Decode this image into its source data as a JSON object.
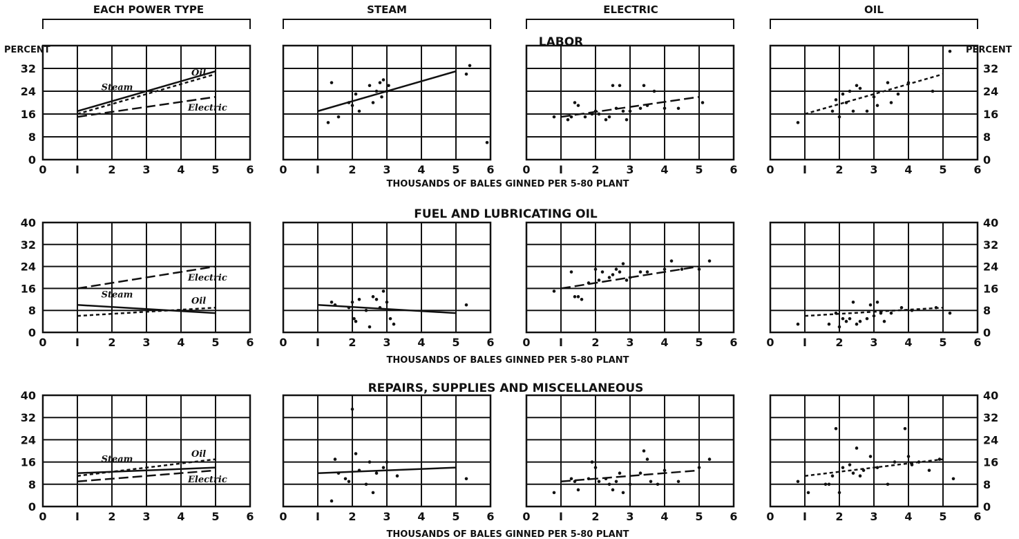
{
  "headers": [
    "EACH POWER TYPE",
    "STEAM",
    "ELECTRIC",
    "OIL"
  ],
  "sections": [
    "LABOR",
    "FUEL AND LUBRICATING OIL",
    "REPAIRS, SUPPLIES AND MISCELLANEOUS"
  ],
  "xlabel": "THOUSANDS OF BALES GINNED PER 5-80 PLANT",
  "x_ticks": [
    "0",
    "I",
    "2",
    "3",
    "4",
    "5",
    "6"
  ],
  "percent_label": "PERCENT",
  "series_labels": {
    "steam": "Steam",
    "electric": "Electric",
    "oil": "Oil"
  },
  "chart_data": [
    {
      "type": "scatter",
      "section": "LABOR",
      "xlim": [
        0,
        6
      ],
      "ylim": [
        0,
        40
      ],
      "y_ticks": [
        0,
        8,
        16,
        24,
        32
      ],
      "grid": true,
      "trends": {
        "steam": [
          [
            1,
            17
          ],
          [
            5,
            31
          ]
        ],
        "electric": [
          [
            1,
            15
          ],
          [
            5,
            22
          ]
        ],
        "oil": [
          [
            1,
            16
          ],
          [
            5,
            30
          ]
        ]
      },
      "points": {
        "steam": [
          [
            1.3,
            13
          ],
          [
            1.4,
            27
          ],
          [
            1.6,
            15
          ],
          [
            1.9,
            20
          ],
          [
            2.0,
            19
          ],
          [
            2.1,
            23
          ],
          [
            2.2,
            17
          ],
          [
            2.5,
            26
          ],
          [
            2.6,
            20
          ],
          [
            2.7,
            24
          ],
          [
            2.8,
            27
          ],
          [
            2.85,
            22
          ],
          [
            2.9,
            28
          ],
          [
            3.0,
            24
          ],
          [
            3.05,
            26
          ],
          [
            5.3,
            30
          ],
          [
            5.4,
            33
          ],
          [
            5.9,
            6
          ]
        ],
        "electric": [
          [
            0.8,
            15
          ],
          [
            1.2,
            14
          ],
          [
            1.3,
            15
          ],
          [
            1.4,
            20
          ],
          [
            1.5,
            19
          ],
          [
            1.7,
            15
          ],
          [
            1.9,
            16
          ],
          [
            2.0,
            17
          ],
          [
            2.1,
            16
          ],
          [
            2.3,
            14
          ],
          [
            2.4,
            15
          ],
          [
            2.5,
            26
          ],
          [
            2.6,
            18
          ],
          [
            2.7,
            26
          ],
          [
            2.8,
            17
          ],
          [
            2.9,
            14
          ],
          [
            3.0,
            17
          ],
          [
            3.3,
            18
          ],
          [
            3.4,
            26
          ],
          [
            3.5,
            19
          ],
          [
            3.7,
            24
          ],
          [
            4.0,
            18
          ],
          [
            4.4,
            18
          ],
          [
            5.1,
            20
          ]
        ],
        "oil": [
          [
            0.8,
            13
          ],
          [
            1.8,
            17
          ],
          [
            1.9,
            21
          ],
          [
            2.0,
            15
          ],
          [
            2.1,
            23
          ],
          [
            2.2,
            20
          ],
          [
            2.3,
            24
          ],
          [
            2.4,
            17
          ],
          [
            2.5,
            26
          ],
          [
            2.6,
            25
          ],
          [
            2.8,
            17
          ],
          [
            3.0,
            22
          ],
          [
            3.1,
            19
          ],
          [
            3.4,
            27
          ],
          [
            3.5,
            20
          ],
          [
            3.7,
            23
          ],
          [
            4.0,
            27
          ],
          [
            4.7,
            24
          ],
          [
            5.2,
            38
          ]
        ]
      }
    },
    {
      "type": "scatter",
      "section": "FUEL AND LUBRICATING OIL",
      "xlim": [
        0,
        6
      ],
      "ylim": [
        0,
        40
      ],
      "y_ticks": [
        0,
        8,
        16,
        24,
        32,
        40
      ],
      "grid": true,
      "trends": {
        "steam": [
          [
            1,
            10
          ],
          [
            5,
            7
          ]
        ],
        "electric": [
          [
            1,
            16
          ],
          [
            5,
            24
          ]
        ],
        "oil": [
          [
            1,
            6
          ],
          [
            5,
            9
          ]
        ]
      },
      "points": {
        "steam": [
          [
            1.4,
            11
          ],
          [
            1.5,
            10
          ],
          [
            1.9,
            9
          ],
          [
            2.0,
            11
          ],
          [
            2.05,
            5
          ],
          [
            2.1,
            4
          ],
          [
            2.2,
            12
          ],
          [
            2.4,
            8
          ],
          [
            2.5,
            2
          ],
          [
            2.6,
            13
          ],
          [
            2.7,
            12
          ],
          [
            2.8,
            9
          ],
          [
            2.9,
            15
          ],
          [
            3.0,
            11
          ],
          [
            3.1,
            5
          ],
          [
            3.2,
            3
          ],
          [
            5.3,
            10
          ]
        ],
        "electric": [
          [
            0.8,
            15
          ],
          [
            1.3,
            22
          ],
          [
            1.4,
            13
          ],
          [
            1.5,
            13
          ],
          [
            1.6,
            12
          ],
          [
            1.8,
            18
          ],
          [
            2.0,
            23
          ],
          [
            2.1,
            19
          ],
          [
            2.2,
            22
          ],
          [
            2.4,
            20
          ],
          [
            2.5,
            21
          ],
          [
            2.6,
            23
          ],
          [
            2.7,
            22
          ],
          [
            2.8,
            25
          ],
          [
            2.9,
            19
          ],
          [
            3.0,
            20
          ],
          [
            3.3,
            22
          ],
          [
            3.5,
            22
          ],
          [
            4.0,
            23
          ],
          [
            4.2,
            26
          ],
          [
            4.5,
            23
          ],
          [
            5.0,
            23
          ],
          [
            5.3,
            26
          ]
        ],
        "oil": [
          [
            0.8,
            3
          ],
          [
            1.7,
            3
          ],
          [
            1.9,
            7
          ],
          [
            2.0,
            2
          ],
          [
            2.1,
            5
          ],
          [
            2.2,
            4
          ],
          [
            2.3,
            5
          ],
          [
            2.4,
            11
          ],
          [
            2.5,
            3
          ],
          [
            2.6,
            4
          ],
          [
            2.8,
            5
          ],
          [
            2.9,
            10
          ],
          [
            3.0,
            6
          ],
          [
            3.1,
            11
          ],
          [
            3.2,
            7
          ],
          [
            3.3,
            4
          ],
          [
            3.5,
            7
          ],
          [
            3.8,
            9
          ],
          [
            4.1,
            8
          ],
          [
            4.8,
            9
          ],
          [
            5.2,
            7
          ]
        ]
      }
    },
    {
      "type": "scatter",
      "section": "REPAIRS, SUPPLIES AND MISCELLANEOUS",
      "xlim": [
        0,
        6
      ],
      "ylim": [
        0,
        40
      ],
      "y_ticks": [
        0,
        8,
        16,
        24,
        32,
        40
      ],
      "grid": true,
      "trends": {
        "steam": [
          [
            1,
            12
          ],
          [
            5,
            14
          ]
        ],
        "electric": [
          [
            1,
            9
          ],
          [
            5,
            13
          ]
        ],
        "oil": [
          [
            1,
            11
          ],
          [
            5,
            17
          ]
        ]
      },
      "points": {
        "steam": [
          [
            1.4,
            2
          ],
          [
            1.5,
            17
          ],
          [
            1.6,
            12
          ],
          [
            1.8,
            10
          ],
          [
            1.9,
            9
          ],
          [
            2.0,
            35
          ],
          [
            2.1,
            19
          ],
          [
            2.2,
            13
          ],
          [
            2.4,
            8
          ],
          [
            2.5,
            16
          ],
          [
            2.6,
            5
          ],
          [
            2.7,
            12
          ],
          [
            2.9,
            14
          ],
          [
            3.0,
            16
          ],
          [
            3.3,
            11
          ],
          [
            5.3,
            10
          ]
        ],
        "electric": [
          [
            0.8,
            5
          ],
          [
            1.3,
            10
          ],
          [
            1.4,
            9
          ],
          [
            1.5,
            6
          ],
          [
            1.8,
            10
          ],
          [
            1.9,
            16
          ],
          [
            2.0,
            14
          ],
          [
            2.1,
            9
          ],
          [
            2.3,
            10
          ],
          [
            2.4,
            8
          ],
          [
            2.5,
            6
          ],
          [
            2.6,
            9
          ],
          [
            2.7,
            12
          ],
          [
            2.8,
            5
          ],
          [
            3.0,
            8
          ],
          [
            3.3,
            12
          ],
          [
            3.4,
            20
          ],
          [
            3.5,
            17
          ],
          [
            3.6,
            9
          ],
          [
            3.8,
            8
          ],
          [
            4.0,
            13
          ],
          [
            4.4,
            9
          ],
          [
            5.0,
            14
          ],
          [
            5.3,
            17
          ]
        ],
        "oil": [
          [
            0.8,
            9
          ],
          [
            1.1,
            5
          ],
          [
            1.6,
            8
          ],
          [
            1.7,
            8
          ],
          [
            1.8,
            11
          ],
          [
            1.9,
            28
          ],
          [
            2.0,
            5
          ],
          [
            2.1,
            14
          ],
          [
            2.3,
            15
          ],
          [
            2.4,
            12
          ],
          [
            2.5,
            21
          ],
          [
            2.6,
            11
          ],
          [
            2.7,
            13
          ],
          [
            2.9,
            18
          ],
          [
            3.1,
            14
          ],
          [
            3.4,
            8
          ],
          [
            3.6,
            16
          ],
          [
            3.9,
            28
          ],
          [
            4.0,
            18
          ],
          [
            4.1,
            15
          ],
          [
            4.3,
            16
          ],
          [
            4.6,
            13
          ],
          [
            4.9,
            17
          ],
          [
            5.3,
            10
          ]
        ]
      }
    }
  ]
}
